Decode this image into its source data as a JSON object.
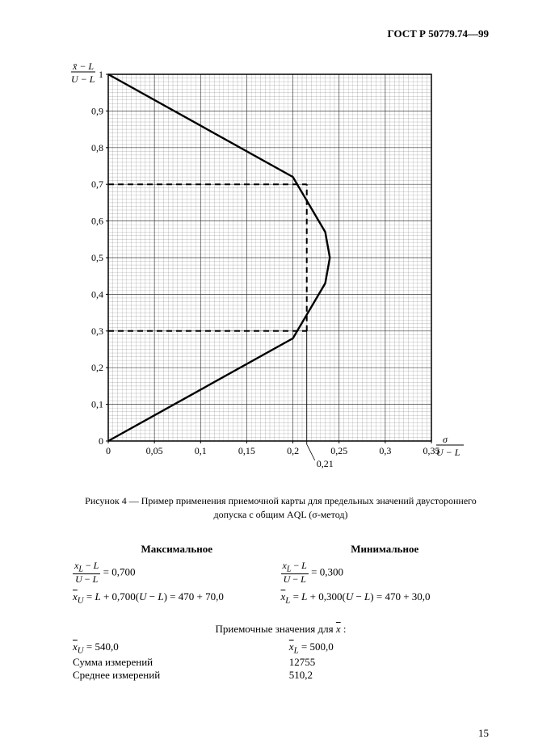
{
  "header": "ГОСТ Р 50779.74—99",
  "chart": {
    "type": "line",
    "y_axis_label_top": "x̄ − L",
    "y_axis_label_bottom": "U − L",
    "x_axis_label_top": "σ",
    "x_axis_label_bottom": "U − L",
    "y_ticks": [
      0,
      0.1,
      0.2,
      0.3,
      0.4,
      0.5,
      0.6,
      0.7,
      0.8,
      0.9,
      1.0
    ],
    "y_tick_labels": [
      "0",
      "0,1",
      "0,2",
      "0,3",
      "0,4",
      "0,5",
      "0,6",
      "0,7",
      "0,8",
      "0,9",
      "1"
    ],
    "x_ticks": [
      0,
      0.05,
      0.1,
      0.15,
      0.2,
      0.25,
      0.3,
      0.35
    ],
    "x_tick_labels": [
      "0",
      "0,05",
      "0,1",
      "0,15",
      "0,2",
      "0,25",
      "0,3",
      "0,35"
    ],
    "ylim": [
      0,
      1.0
    ],
    "xlim": [
      0,
      0.35
    ],
    "curve_upper": [
      [
        0,
        1.0
      ],
      [
        0.2,
        0.72
      ],
      [
        0.235,
        0.57
      ],
      [
        0.24,
        0.5
      ]
    ],
    "curve_lower": [
      [
        0,
        0.0
      ],
      [
        0.2,
        0.28
      ],
      [
        0.235,
        0.43
      ],
      [
        0.24,
        0.5
      ]
    ],
    "dash_h_upper": {
      "y": 0.7,
      "x_from": 0,
      "x_to": 0.215
    },
    "dash_h_lower": {
      "y": 0.3,
      "x_from": 0,
      "x_to": 0.215
    },
    "dash_v": {
      "x": 0.215,
      "y_from": 0.3,
      "y_to": 0.7,
      "extend_to_axis": true
    },
    "annotation": {
      "text": "0,21",
      "x": 0.215
    },
    "grid_color": "#2b2b2b",
    "line_color": "#000000",
    "background_color": "#ffffff",
    "line_width": 2.4,
    "dash_width": 2.0
  },
  "caption": "Рисунок 4 — Пример применения приемочной карты для предельных значений двустороннего допуска с общим AQL (σ-метод)",
  "columns": {
    "max": {
      "heading": "Максимальное",
      "line1": "= 0,700",
      "line2_prefix": "x̄_U = L + 0,700(U − L) = 470 + 70,0"
    },
    "min": {
      "heading": "Минимальное",
      "line1": "= 0,300",
      "line2_prefix": "x̄_L = L + 0,300(U − L) = 470 + 30,0"
    }
  },
  "accept": {
    "title": "Приемочные значения для x̄ :",
    "rows": [
      {
        "l": "x̄_U = 540,0",
        "r": "x̄_L = 500,0"
      },
      {
        "l": "Сумма измерений",
        "r": "12755"
      },
      {
        "l": "Среднее измерений",
        "r": "510,2"
      }
    ]
  },
  "page_number": "15"
}
